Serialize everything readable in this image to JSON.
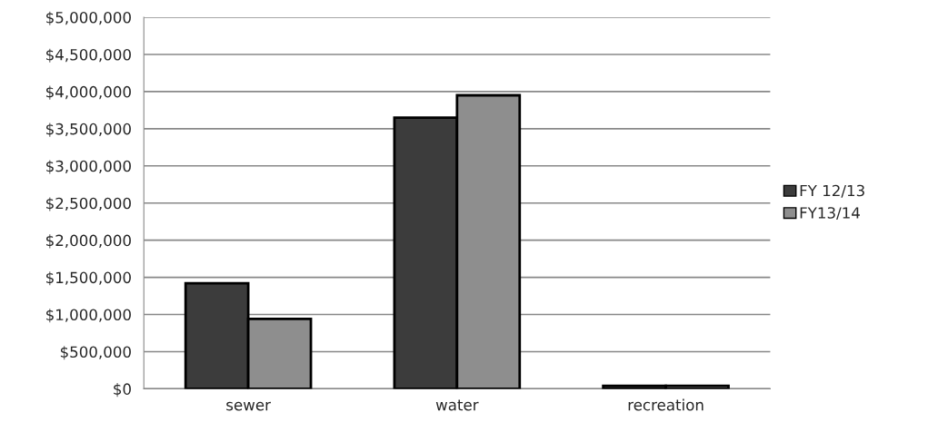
{
  "chart_data": {
    "type": "bar",
    "categories": [
      "sewer",
      "water",
      "recreation"
    ],
    "series": [
      {
        "name": "FY 12/13",
        "color": "#3c3c3c",
        "values": [
          1420000,
          3650000,
          40000
        ]
      },
      {
        "name": "FY13/14",
        "color": "#8e8e8e",
        "values": [
          940000,
          3950000,
          40000
        ]
      }
    ],
    "ylim": [
      0,
      5000000
    ],
    "yticks": [
      {
        "value": 0,
        "label": "$0"
      },
      {
        "value": 500000,
        "label": "$500,000"
      },
      {
        "value": 1000000,
        "label": "$1,000,000"
      },
      {
        "value": 1500000,
        "label": "$1,500,000"
      },
      {
        "value": 2000000,
        "label": "$2,000,000"
      },
      {
        "value": 2500000,
        "label": "$2,500,000"
      },
      {
        "value": 3000000,
        "label": "$3,000,000"
      },
      {
        "value": 3500000,
        "label": "$3,500,000"
      },
      {
        "value": 4000000,
        "label": "$4,000,000"
      },
      {
        "value": 4500000,
        "label": "$4,500,000"
      },
      {
        "value": 5000000,
        "label": "$5,000,000"
      }
    ],
    "grid": "y",
    "legend": "right"
  }
}
